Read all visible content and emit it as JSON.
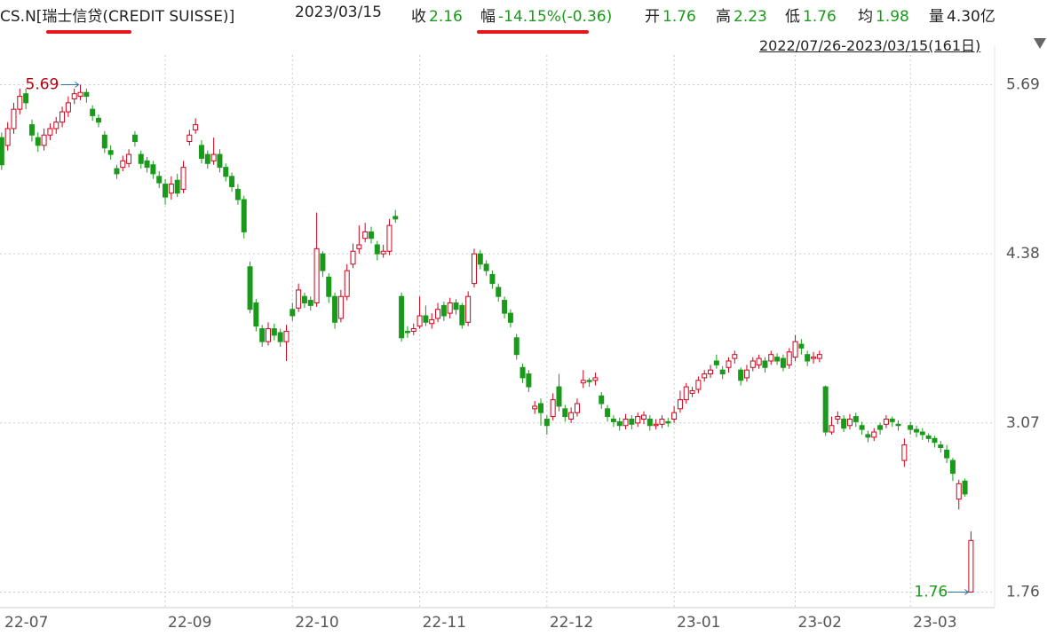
{
  "header": {
    "symbol": "CS.N[瑞士信贷(CREDIT SUISSE)]",
    "date": "2023/03/15",
    "fields": [
      {
        "label": "收",
        "value": "2.16"
      },
      {
        "label": "幅",
        "value": "-14.15%(-0.36)"
      },
      {
        "label": "开",
        "value": "1.76"
      },
      {
        "label": "高",
        "value": "2.23"
      },
      {
        "label": "低",
        "value": "1.76"
      },
      {
        "label": "均",
        "value": "1.98"
      },
      {
        "label": "量",
        "value": "4.30亿"
      }
    ],
    "range": "2022/07/26-2023/03/15(161日)"
  },
  "chart_data": {
    "type": "candlestick",
    "up_color": "#d0021b",
    "down_color": "#1a9a1a",
    "grid": true,
    "ylim": [
      1.64,
      5.92
    ],
    "yticks": [
      1.76,
      3.07,
      4.38,
      5.69
    ],
    "xlim": [
      -0.27,
      163.9
    ],
    "xticks": [
      {
        "value": 0,
        "label": "22-07"
      },
      {
        "value": 27,
        "label": "22-09"
      },
      {
        "value": 48,
        "label": "22-10"
      },
      {
        "value": 69,
        "label": "22-11"
      },
      {
        "value": 90,
        "label": "22-12"
      },
      {
        "value": 111,
        "label": "23-01"
      },
      {
        "value": 131,
        "label": "23-02"
      },
      {
        "value": 150,
        "label": "23-03"
      }
    ],
    "high_label": "5.69",
    "low_label": "1.76",
    "candles": [
      [
        5.28,
        5.32,
        5.03,
        5.07
      ],
      [
        5.22,
        5.4,
        5.18,
        5.35
      ],
      [
        5.35,
        5.55,
        5.31,
        5.5
      ],
      [
        5.5,
        5.66,
        5.46,
        5.6
      ],
      [
        5.62,
        5.66,
        5.5,
        5.55
      ],
      [
        5.38,
        5.42,
        5.25,
        5.3
      ],
      [
        5.28,
        5.32,
        5.17,
        5.22
      ],
      [
        5.22,
        5.35,
        5.18,
        5.3
      ],
      [
        5.3,
        5.39,
        5.26,
        5.35
      ],
      [
        5.35,
        5.44,
        5.31,
        5.4
      ],
      [
        5.4,
        5.52,
        5.36,
        5.48
      ],
      [
        5.48,
        5.6,
        5.44,
        5.55
      ],
      [
        5.58,
        5.66,
        5.54,
        5.62
      ],
      [
        5.6,
        5.69,
        5.57,
        5.63
      ],
      [
        5.63,
        5.66,
        5.55,
        5.6
      ],
      [
        5.5,
        5.53,
        5.41,
        5.45
      ],
      [
        5.43,
        5.46,
        5.36,
        5.4
      ],
      [
        5.3,
        5.33,
        5.16,
        5.2
      ],
      [
        5.18,
        5.22,
        5.11,
        5.15
      ],
      [
        5.04,
        5.07,
        4.96,
        5.0
      ],
      [
        5.05,
        5.14,
        5.02,
        5.1
      ],
      [
        5.08,
        5.19,
        5.05,
        5.15
      ],
      [
        5.3,
        5.33,
        5.21,
        5.25
      ],
      [
        5.15,
        5.18,
        5.04,
        5.08
      ],
      [
        5.1,
        5.13,
        5.01,
        5.05
      ],
      [
        5.07,
        5.1,
        4.96,
        5.0
      ],
      [
        4.98,
        5.02,
        4.89,
        4.93
      ],
      [
        4.92,
        4.96,
        4.76,
        4.82
      ],
      [
        4.85,
        4.98,
        4.8,
        4.92
      ],
      [
        4.95,
        5.0,
        4.82,
        4.85
      ],
      [
        4.88,
        5.1,
        4.85,
        5.05
      ],
      [
        5.25,
        5.34,
        5.22,
        5.3
      ],
      [
        5.34,
        5.43,
        5.31,
        5.38
      ],
      [
        5.22,
        5.26,
        5.08,
        5.12
      ],
      [
        5.15,
        5.18,
        5.04,
        5.08
      ],
      [
        5.1,
        5.28,
        5.07,
        5.15
      ],
      [
        5.15,
        5.19,
        5.01,
        5.05
      ],
      [
        5.05,
        5.08,
        4.94,
        4.98
      ],
      [
        4.98,
        5.01,
        4.86,
        4.9
      ],
      [
        4.88,
        4.92,
        4.76,
        4.8
      ],
      [
        4.8,
        4.83,
        4.5,
        4.55
      ],
      [
        4.28,
        4.32,
        3.92,
        3.95
      ],
      [
        4.0,
        4.03,
        3.78,
        3.82
      ],
      [
        3.8,
        3.83,
        3.66,
        3.7
      ],
      [
        3.7,
        3.85,
        3.67,
        3.8
      ],
      [
        3.8,
        3.84,
        3.71,
        3.75
      ],
      [
        3.77,
        3.8,
        3.66,
        3.7
      ],
      [
        3.7,
        3.83,
        3.55,
        3.78
      ],
      [
        3.95,
        4.0,
        3.86,
        3.9
      ],
      [
        3.96,
        4.15,
        3.93,
        4.1
      ],
      [
        4.05,
        4.08,
        3.96,
        4.0
      ],
      [
        4.02,
        4.05,
        3.94,
        3.98
      ],
      [
        4.0,
        4.7,
        3.97,
        4.42
      ],
      [
        4.38,
        4.4,
        4.2,
        4.25
      ],
      [
        4.2,
        4.23,
        4.0,
        4.05
      ],
      [
        4.05,
        4.08,
        3.8,
        3.85
      ],
      [
        3.88,
        4.1,
        3.85,
        4.05
      ],
      [
        4.05,
        4.3,
        4.02,
        4.25
      ],
      [
        4.3,
        4.46,
        4.27,
        4.4
      ],
      [
        4.42,
        4.6,
        4.38,
        4.45
      ],
      [
        4.5,
        4.62,
        4.47,
        4.55
      ],
      [
        4.55,
        4.59,
        4.46,
        4.5
      ],
      [
        4.45,
        4.48,
        4.33,
        4.38
      ],
      [
        4.38,
        4.45,
        4.35,
        4.4
      ],
      [
        4.4,
        4.65,
        4.37,
        4.6
      ],
      [
        4.67,
        4.72,
        4.62,
        4.65
      ],
      [
        4.05,
        4.08,
        3.7,
        3.73
      ],
      [
        3.78,
        3.82,
        3.73,
        3.77
      ],
      [
        3.78,
        3.84,
        3.75,
        3.8
      ],
      [
        3.82,
        4.05,
        3.8,
        3.9
      ],
      [
        3.9,
        3.98,
        3.82,
        3.85
      ],
      [
        3.84,
        3.92,
        3.8,
        3.87
      ],
      [
        3.88,
        4.0,
        3.85,
        3.95
      ],
      [
        3.98,
        4.01,
        3.86,
        3.9
      ],
      [
        3.92,
        4.04,
        3.88,
        4.0
      ],
      [
        4.0,
        4.03,
        3.91,
        3.95
      ],
      [
        3.98,
        4.0,
        3.8,
        3.83
      ],
      [
        3.85,
        4.09,
        3.82,
        4.05
      ],
      [
        4.15,
        4.42,
        4.12,
        4.38
      ],
      [
        4.38,
        4.41,
        4.26,
        4.3
      ],
      [
        4.3,
        4.33,
        4.21,
        4.25
      ],
      [
        4.22,
        4.25,
        4.11,
        4.15
      ],
      [
        4.12,
        4.15,
        4.01,
        4.05
      ],
      [
        4.02,
        4.05,
        3.88,
        3.92
      ],
      [
        3.92,
        3.95,
        3.81,
        3.85
      ],
      [
        3.73,
        3.76,
        3.56,
        3.6
      ],
      [
        3.5,
        3.53,
        3.38,
        3.42
      ],
      [
        3.45,
        3.48,
        3.31,
        3.35
      ],
      [
        3.18,
        3.24,
        3.14,
        3.2
      ],
      [
        3.22,
        3.26,
        3.05,
        3.15
      ],
      [
        3.1,
        3.13,
        2.98,
        3.05
      ],
      [
        3.12,
        3.3,
        3.09,
        3.25
      ],
      [
        3.35,
        3.45,
        3.16,
        3.2
      ],
      [
        3.18,
        3.21,
        3.08,
        3.12
      ],
      [
        3.1,
        3.19,
        3.07,
        3.15
      ],
      [
        3.15,
        3.26,
        3.12,
        3.22
      ],
      [
        3.38,
        3.48,
        3.34,
        3.4
      ],
      [
        3.4,
        3.42,
        3.35,
        3.39
      ],
      [
        3.4,
        3.46,
        3.36,
        3.42
      ],
      [
        3.28,
        3.31,
        3.18,
        3.22
      ],
      [
        3.18,
        3.21,
        3.08,
        3.12
      ],
      [
        3.1,
        3.13,
        3.04,
        3.08
      ],
      [
        3.08,
        3.11,
        3.01,
        3.05
      ],
      [
        3.05,
        3.14,
        3.02,
        3.1
      ],
      [
        3.1,
        3.13,
        3.02,
        3.06
      ],
      [
        3.07,
        3.15,
        3.04,
        3.12
      ],
      [
        3.1,
        3.16,
        3.06,
        3.13
      ],
      [
        3.1,
        3.13,
        3.01,
        3.05
      ],
      [
        3.05,
        3.1,
        3.02,
        3.06
      ],
      [
        3.06,
        3.13,
        3.03,
        3.1
      ],
      [
        3.08,
        3.11,
        3.04,
        3.07
      ],
      [
        3.1,
        3.2,
        3.07,
        3.15
      ],
      [
        3.18,
        3.32,
        3.15,
        3.25
      ],
      [
        3.25,
        3.38,
        3.22,
        3.35
      ],
      [
        3.3,
        3.35,
        3.27,
        3.32
      ],
      [
        3.33,
        3.43,
        3.3,
        3.4
      ],
      [
        3.42,
        3.48,
        3.39,
        3.45
      ],
      [
        3.45,
        3.52,
        3.42,
        3.48
      ],
      [
        3.55,
        3.6,
        3.49,
        3.52
      ],
      [
        3.48,
        3.51,
        3.41,
        3.45
      ],
      [
        3.5,
        3.58,
        3.46,
        3.55
      ],
      [
        3.57,
        3.63,
        3.53,
        3.6
      ],
      [
        3.48,
        3.5,
        3.36,
        3.4
      ],
      [
        3.42,
        3.52,
        3.39,
        3.48
      ],
      [
        3.5,
        3.58,
        3.47,
        3.55
      ],
      [
        3.52,
        3.6,
        3.49,
        3.57
      ],
      [
        3.55,
        3.58,
        3.46,
        3.5
      ],
      [
        3.55,
        3.63,
        3.52,
        3.6
      ],
      [
        3.58,
        3.61,
        3.52,
        3.55
      ],
      [
        3.57,
        3.6,
        3.47,
        3.5
      ],
      [
        3.52,
        3.65,
        3.49,
        3.62
      ],
      [
        3.58,
        3.75,
        3.55,
        3.7
      ],
      [
        3.68,
        3.72,
        3.6,
        3.65
      ],
      [
        3.6,
        3.63,
        3.51,
        3.55
      ],
      [
        3.57,
        3.62,
        3.53,
        3.58
      ],
      [
        3.57,
        3.63,
        3.54,
        3.6
      ],
      [
        3.35,
        3.36,
        2.97,
        3.0
      ],
      [
        3.0,
        3.12,
        2.98,
        3.05
      ],
      [
        3.1,
        3.16,
        3.06,
        3.12
      ],
      [
        3.1,
        3.13,
        3.0,
        3.03
      ],
      [
        3.05,
        3.14,
        3.02,
        3.1
      ],
      [
        3.12,
        3.15,
        3.04,
        3.08
      ],
      [
        3.05,
        3.08,
        2.98,
        3.02
      ],
      [
        2.98,
        3.01,
        2.92,
        2.96
      ],
      [
        2.96,
        3.03,
        2.93,
        3.0
      ],
      [
        3.05,
        3.07,
        2.98,
        3.02
      ],
      [
        3.06,
        3.13,
        3.03,
        3.1
      ],
      [
        3.1,
        3.12,
        3.04,
        3.08
      ],
      [
        3.06,
        3.09,
        3.01,
        3.05
      ],
      [
        2.78,
        2.95,
        2.73,
        2.9
      ],
      [
        3.05,
        3.08,
        2.98,
        3.02
      ],
      [
        3.02,
        3.05,
        2.96,
        3.0
      ],
      [
        3.0,
        3.03,
        2.94,
        2.98
      ],
      [
        2.97,
        2.99,
        2.92,
        2.95
      ],
      [
        2.95,
        2.97,
        2.88,
        2.92
      ],
      [
        2.9,
        2.93,
        2.84,
        2.88
      ],
      [
        2.86,
        2.9,
        2.76,
        2.8
      ],
      [
        2.78,
        2.8,
        2.62,
        2.68
      ],
      [
        2.48,
        2.63,
        2.4,
        2.6
      ],
      [
        2.62,
        2.64,
        2.5,
        2.52
      ],
      [
        1.76,
        2.23,
        1.76,
        2.16
      ]
    ]
  }
}
